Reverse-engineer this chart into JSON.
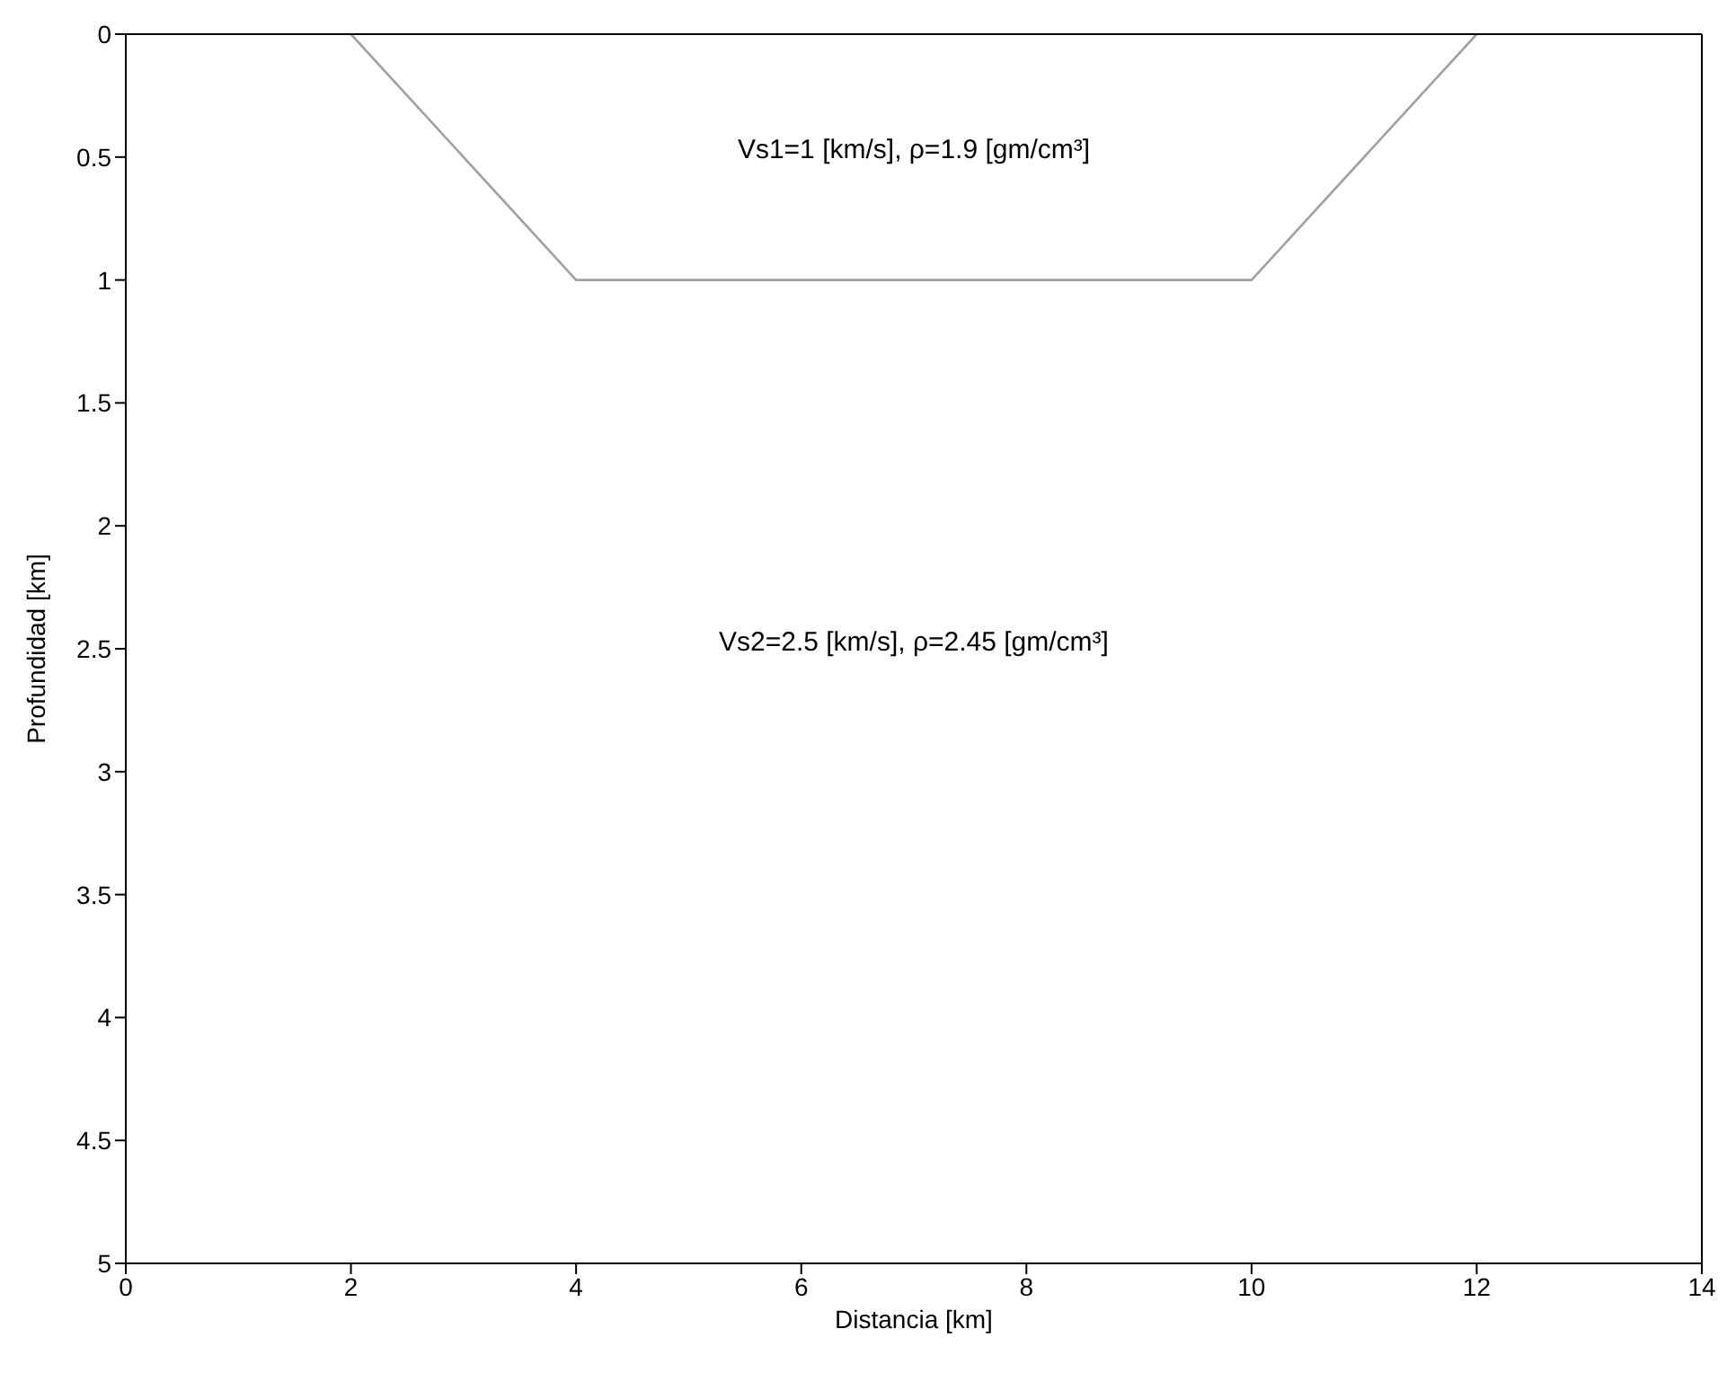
{
  "chart_data": {
    "type": "line",
    "xlabel": "Distancia [km]",
    "ylabel": "Profundidad [km]",
    "x": [
      2,
      4,
      10,
      12
    ],
    "series": [
      {
        "color": "#a0a0a0",
        "values": [
          0,
          1,
          1,
          0
        ]
      }
    ],
    "xlim": [
      0,
      14
    ],
    "xticks": [
      0,
      2,
      4,
      6,
      8,
      10,
      12,
      14
    ],
    "ylim": [
      5,
      0
    ],
    "yticks": [
      0,
      0.5,
      1,
      1.5,
      2,
      2.5,
      3,
      3.5,
      4,
      4.5,
      5
    ],
    "grid": false,
    "legend": false,
    "marker": "none",
    "line_style": "solid",
    "annotations": [
      "Vs1=1 [km/s], ρ=1.9 [gm/cm³]",
      "Vs2=2.5 [km/s], ρ=2.45 [gm/cm³]"
    ]
  }
}
